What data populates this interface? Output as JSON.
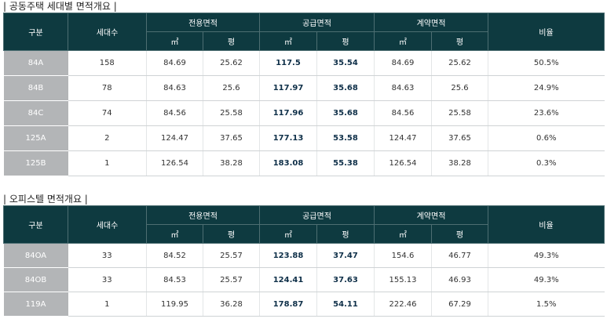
{
  "apartment": {
    "title": "| 공동주택 세대별 면적개요 |",
    "headers": {
      "type": "구분",
      "units": "세대수",
      "exclusive": "전용면적",
      "supply": "공급면적",
      "contract": "계약면적",
      "ratio": "비율",
      "m2": "㎡",
      "pyeong": "평"
    },
    "rows": [
      [
        "84A",
        "158",
        "84.69",
        "25.62",
        "117.5",
        "35.54",
        "84.69",
        "25.62",
        "50.5%"
      ],
      [
        "84B",
        "78",
        "84.63",
        "25.6",
        "117.97",
        "35.68",
        "84.63",
        "25.6",
        "24.9%"
      ],
      [
        "84C",
        "74",
        "84.56",
        "25.58",
        "117.96",
        "35.68",
        "84.56",
        "25.58",
        "23.6%"
      ],
      [
        "125A",
        "2",
        "124.47",
        "37.65",
        "177.13",
        "53.58",
        "124.47",
        "37.65",
        "0.6%"
      ],
      [
        "125B",
        "1",
        "126.54",
        "38.28",
        "183.08",
        "55.38",
        "126.54",
        "38.28",
        "0.3%"
      ]
    ]
  },
  "officetel": {
    "title": "| 오피스텔 면적개요 |",
    "headers": {
      "type": "구분",
      "units": "세대수",
      "exclusive": "전용면적",
      "supply": "공급면적",
      "contract": "계약면적",
      "ratio": "비율",
      "m2": "㎡",
      "pyeong": "평"
    },
    "rows": [
      [
        "84OA",
        "33",
        "84.52",
        "25.57",
        "123.88",
        "37.47",
        "154.6",
        "46.77",
        "49.3%"
      ],
      [
        "84OB",
        "33",
        "84.53",
        "25.57",
        "124.41",
        "37.63",
        "155.13",
        "46.93",
        "49.3%"
      ],
      [
        "119A",
        "1",
        "119.95",
        "36.28",
        "178.87",
        "54.11",
        "222.46",
        "67.29",
        "1.5%"
      ]
    ]
  },
  "colors": {
    "header_bg": "#0e3a40",
    "type_cell_bg": "#b3b5b7",
    "supply_text": "#0e2f48"
  }
}
